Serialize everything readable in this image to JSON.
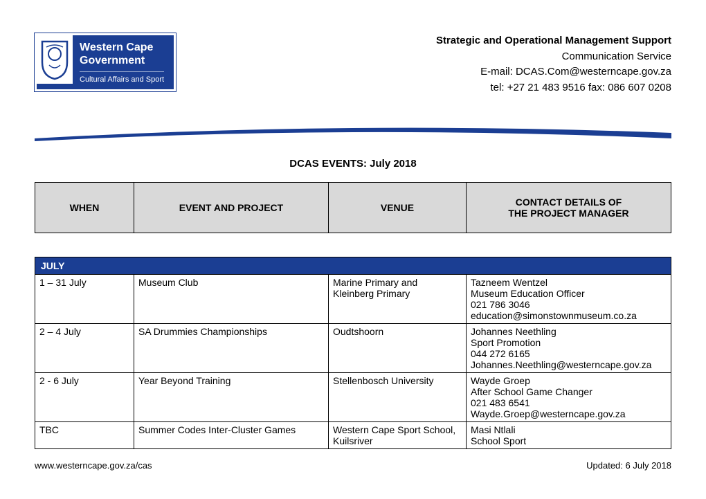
{
  "logo": {
    "line1": "Western Cape",
    "line2": "Government",
    "line3": "Cultural Affairs and Sport"
  },
  "header": {
    "title": "Strategic and Operational Management Support",
    "subtitle": "Communication Service",
    "email": "E-mail: DCAS.Com@westerncape.gov.za",
    "telfax": "tel: +27 21 483 9516    fax: 086 607 0208"
  },
  "doc_title": "DCAS EVENTS: July 2018",
  "columns": {
    "when": "WHEN",
    "event": "EVENT AND PROJECT",
    "venue": "VENUE",
    "contact_l1": "CONTACT DETAILS OF",
    "contact_l2": "THE PROJECT MANAGER"
  },
  "month_label": "JULY",
  "rows": [
    {
      "when": "1 – 31 July",
      "event": "Museum Club",
      "venue": [
        "Marine Primary and",
        "Kleinberg Primary"
      ],
      "contact": [
        "Tazneem Wentzel",
        "Museum Education Officer",
        "021 786 3046",
        "education@simonstownmuseum.co.za"
      ]
    },
    {
      "when": "2 – 4 July",
      "event": "SA Drummies Championships",
      "venue": [
        "Oudtshoorn"
      ],
      "contact": [
        "Johannes Neethling",
        "Sport Promotion",
        "044 272 6165",
        "Johannes.Neethling@westerncape.gov.za"
      ]
    },
    {
      "when": "2 - 6 July",
      "event": "Year Beyond Training",
      "venue": [
        "Stellenbosch University"
      ],
      "contact": [
        "Wayde Groep",
        "After School Game Changer",
        "021 483 6541",
        "Wayde.Groep@westerncape.gov.za"
      ]
    },
    {
      "when": "TBC",
      "event": "Summer Codes Inter-Cluster Games",
      "venue": [
        "Western Cape Sport School,",
        "Kuilsriver"
      ],
      "contact": [
        "Masi Ntlali",
        "School Sport"
      ]
    }
  ],
  "footer": {
    "url": "www.westerncape.gov.za/cas",
    "updated": "Updated: 6 July 2018"
  },
  "colors": {
    "brand_blue": "#1b3e93",
    "header_grey": "#d9d9d9"
  }
}
